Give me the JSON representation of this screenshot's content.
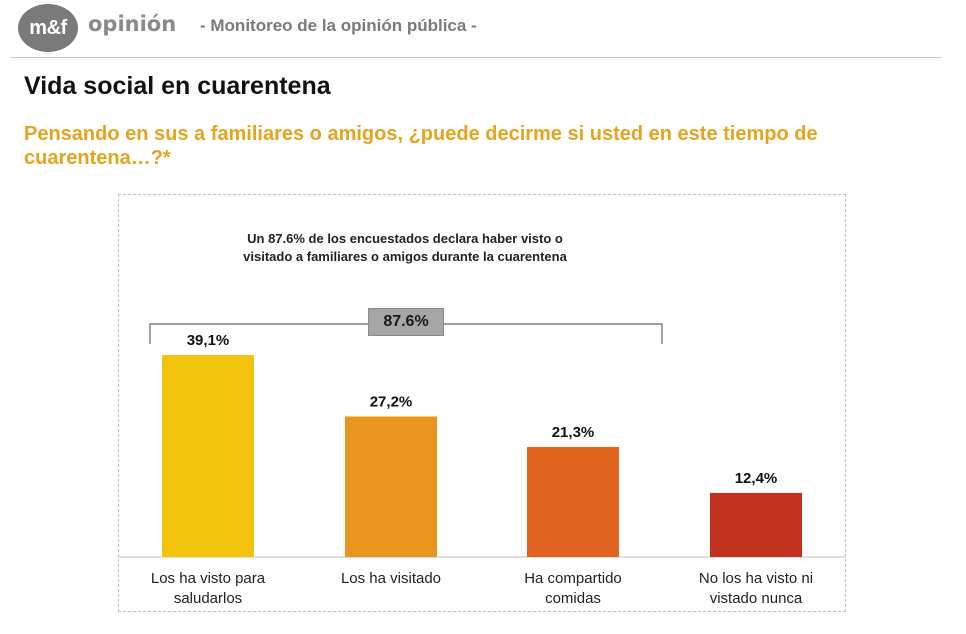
{
  "header": {
    "logo_text": "m&f",
    "brand": "opinión",
    "subtitle": "- Monitoreo de la opinión pública -"
  },
  "page_title": "Vida social en cuarentena",
  "question": "Pensando en sus a familiares o amigos, ¿puede decirme si usted en este tiempo de cuarentena…?*",
  "annotation": "Un 87.6% de los encuestados declara haber visto o visitado a familiares o amigos durante la cuarentena",
  "bracket_value": "87.6%",
  "chart_data": {
    "type": "bar",
    "categories": [
      [
        "Los ha visto para",
        "saludarlos"
      ],
      [
        "Los ha visitado"
      ],
      [
        "Ha compartido",
        "comidas"
      ],
      [
        "No los ha visto ni",
        "vistado nunca"
      ]
    ],
    "values": [
      39.1,
      27.2,
      21.3,
      12.4
    ],
    "value_labels": [
      "39,1%",
      "27,2%",
      "21,3%",
      "12,4%"
    ],
    "colors": [
      "#f2c40e",
      "#e8961e",
      "#e06320",
      "#c0321e"
    ],
    "ylim": [
      0,
      45
    ]
  }
}
